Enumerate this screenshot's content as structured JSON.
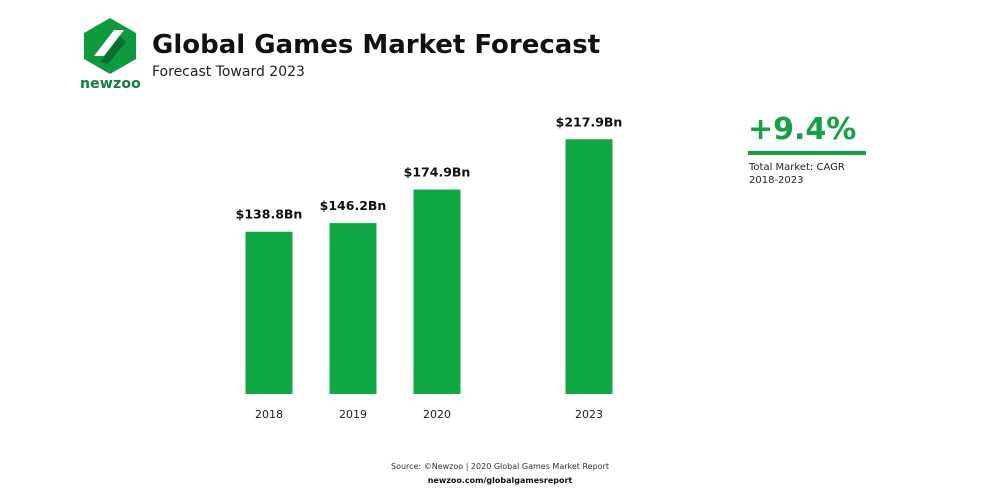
{
  "brand": {
    "name": "newzoo",
    "logo_color": "#0e9a3e",
    "logo_dark": "#0b6e2e"
  },
  "header": {
    "title": "Global Games Market Forecast",
    "subtitle": "Forecast Toward 2023"
  },
  "cagr": {
    "value": "+9.4%",
    "label_line1": "Total Market: CAGR",
    "label_line2": "2018-2023",
    "color": "#13a243"
  },
  "chart_data": {
    "type": "bar",
    "categories": [
      "2018",
      "2019",
      "2020",
      "2023"
    ],
    "values": [
      138.8,
      146.2,
      174.9,
      217.9
    ],
    "data_labels": [
      "$138.8Bn",
      "$146.2Bn",
      "$174.9Bn",
      "$217.9Bn"
    ],
    "bar_color": "#0ea844",
    "grid": false,
    "legend": "none"
  },
  "footer": {
    "source": "Source: ©Newzoo | 2020 Global Games Market Report",
    "url": "newzoo.com/globalgamesreport"
  }
}
